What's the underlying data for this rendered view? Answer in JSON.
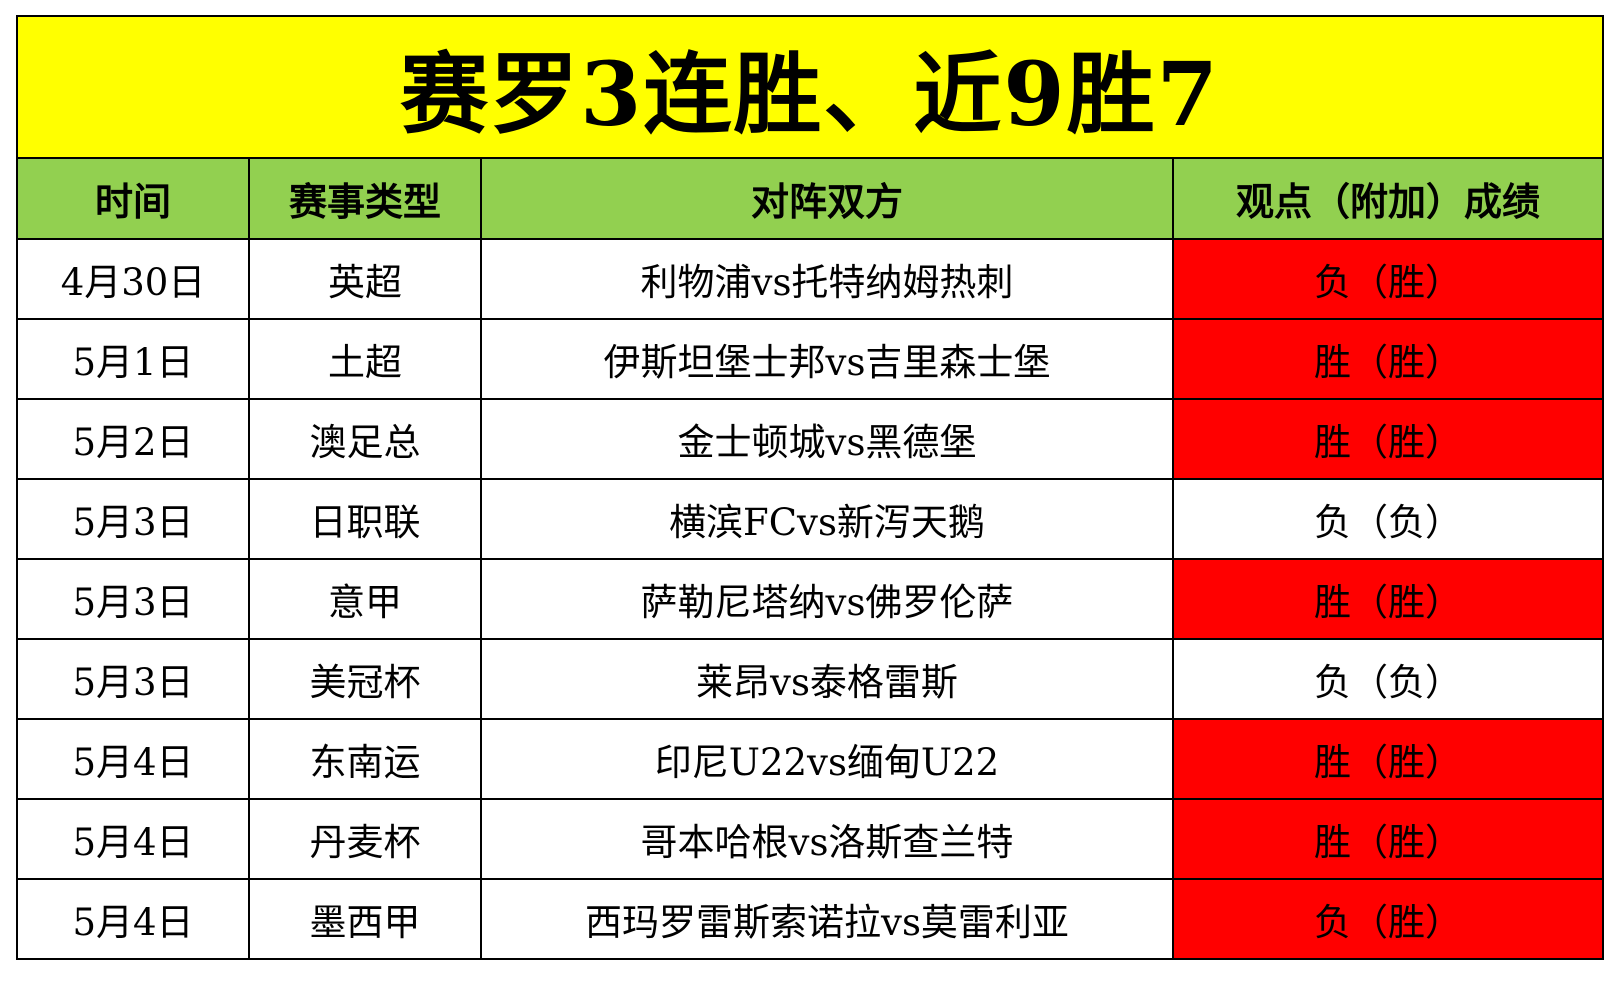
{
  "colors": {
    "title_bg": "#ffff00",
    "header_bg": "#92d050",
    "hit_bg": "#ff0000",
    "miss_bg": "#ffffff"
  },
  "title": "赛罗3连胜、近9胜7",
  "headers": [
    "时间",
    "赛事类型",
    "对阵双方",
    "观点（附加）成绩"
  ],
  "rows": [
    {
      "date": "4月30日",
      "league": "英超",
      "match": "利物浦vs托特纳姆热刺",
      "result": "负（胜）",
      "highlight": true
    },
    {
      "date": "5月1日",
      "league": "土超",
      "match": "伊斯坦堡士邦vs吉里森士堡",
      "result": "胜（胜）",
      "highlight": true
    },
    {
      "date": "5月2日",
      "league": "澳足总",
      "match": "金士顿城vs黑德堡",
      "result": "胜（胜）",
      "highlight": true
    },
    {
      "date": "5月3日",
      "league": "日职联",
      "match": "横滨FCvs新泻天鹅",
      "result": "负（负）",
      "highlight": false
    },
    {
      "date": "5月3日",
      "league": "意甲",
      "match": "萨勒尼塔纳vs佛罗伦萨",
      "result": "胜（胜）",
      "highlight": true
    },
    {
      "date": "5月3日",
      "league": "美冠杯",
      "match": "莱昂vs泰格雷斯",
      "result": "负（负）",
      "highlight": false
    },
    {
      "date": "5月4日",
      "league": "东南运",
      "match": "印尼U22vs缅甸U22",
      "result": "胜（胜）",
      "highlight": true
    },
    {
      "date": "5月4日",
      "league": "丹麦杯",
      "match": "哥本哈根vs洛斯查兰特",
      "result": "胜（胜）",
      "highlight": true
    },
    {
      "date": "5月4日",
      "league": "墨西甲",
      "match": "西玛罗雷斯索诺拉vs莫雷利亚",
      "result": "负（胜）",
      "highlight": true
    }
  ]
}
